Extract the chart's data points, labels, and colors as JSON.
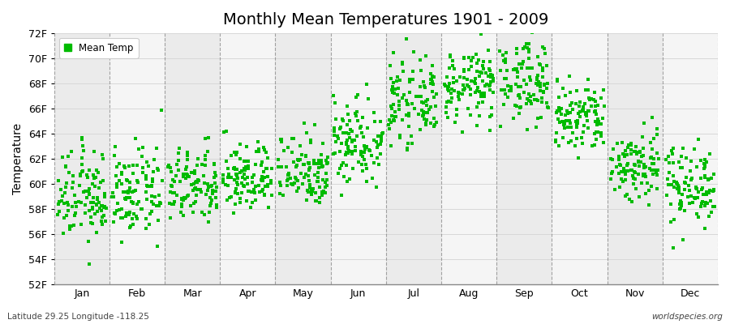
{
  "title": "Monthly Mean Temperatures 1901 - 2009",
  "ylabel": "Temperature",
  "bottom_left": "Latitude 29.25 Longitude -118.25",
  "bottom_right": "worldspecies.org",
  "legend_label": "Mean Temp",
  "marker_color": "#00bb00",
  "ylim": [
    52,
    72
  ],
  "yticks": [
    52,
    54,
    56,
    58,
    60,
    62,
    64,
    66,
    68,
    70,
    72
  ],
  "ytick_labels": [
    "52F",
    "54F",
    "56F",
    "58F",
    "60F",
    "62F",
    "64F",
    "66F",
    "68F",
    "70F",
    "72F"
  ],
  "months": [
    "Jan",
    "Feb",
    "Mar",
    "Apr",
    "May",
    "Jun",
    "Jul",
    "Aug",
    "Sep",
    "Oct",
    "Nov",
    "Dec"
  ],
  "month_means": [
    59.0,
    59.2,
    59.8,
    60.5,
    61.2,
    63.5,
    66.5,
    67.8,
    68.2,
    65.2,
    61.5,
    60.0
  ],
  "month_stds": [
    1.8,
    1.7,
    1.5,
    1.4,
    1.5,
    1.8,
    1.5,
    1.4,
    1.6,
    1.5,
    1.5,
    1.6
  ],
  "n_years": 109,
  "bg_color": "#ebebeb",
  "bg_stripe_color": "#f5f5f5",
  "dashed_line_color": "#808080",
  "hgrid_color": "#d8d8d8",
  "title_fontsize": 14,
  "axis_fontsize": 9,
  "ylabel_fontsize": 10
}
